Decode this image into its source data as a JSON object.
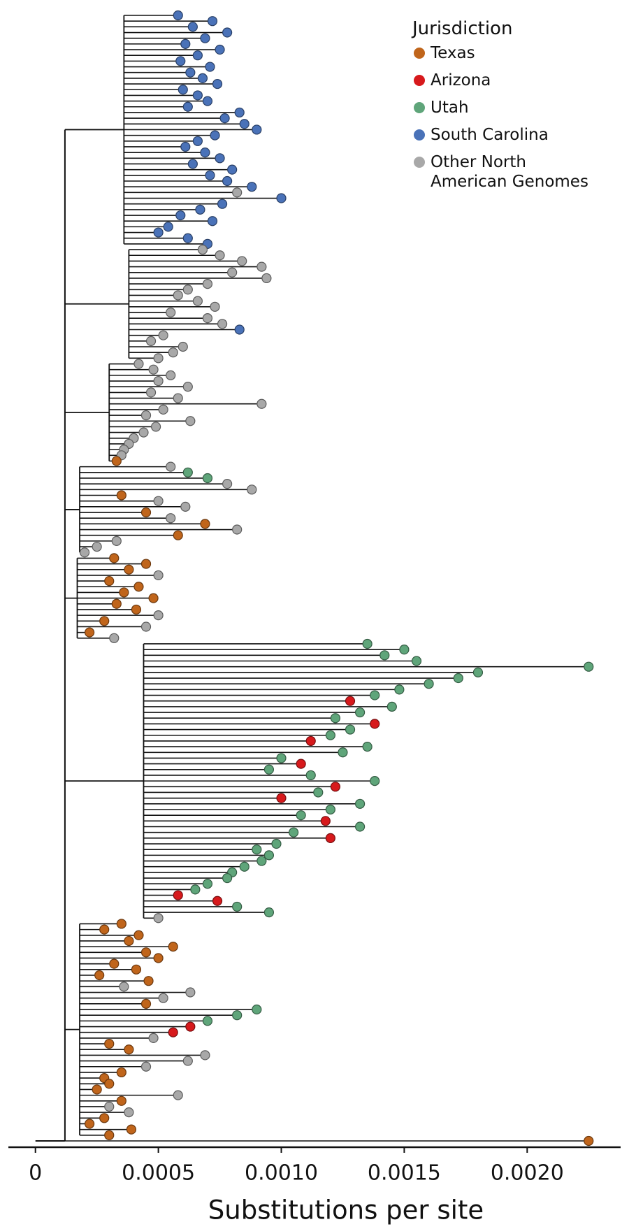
{
  "chart_data": {
    "type": "tree",
    "xlabel": "Substitutions per site",
    "xlim": [
      -0.00011,
      0.00238
    ],
    "xticks": [
      0,
      0.0005,
      {
        "value": 0.001,
        "label": "0.0010"
      },
      0.0015,
      {
        "value": 0.002,
        "label": "0.0020"
      }
    ],
    "legend_title": "Jurisdiction",
    "legend_position": "upper right",
    "series": [
      {
        "name": "Texas",
        "color": "#c0651b"
      },
      {
        "name": "Arizona",
        "color": "#d7191c"
      },
      {
        "name": "Utah",
        "color": "#5fa57a"
      },
      {
        "name": "South Carolina",
        "color": "#4a72b8"
      },
      {
        "name": "Other North American Genomes",
        "color": "#a8a8a8"
      }
    ],
    "root_x": 0.00012,
    "clades": [
      {
        "node_x": 0.00036,
        "tips": [
          [
            0.00058,
            3
          ],
          [
            0.00072,
            3
          ],
          [
            0.00064,
            3
          ],
          [
            0.00078,
            3
          ],
          [
            0.00069,
            3
          ],
          [
            0.00061,
            3
          ],
          [
            0.00075,
            3
          ],
          [
            0.00066,
            3
          ],
          [
            0.00059,
            3
          ],
          [
            0.00071,
            3
          ],
          [
            0.00063,
            3
          ],
          [
            0.00068,
            3
          ],
          [
            0.00074,
            3
          ],
          [
            0.0006,
            3
          ],
          [
            0.00066,
            3
          ],
          [
            0.0007,
            3
          ],
          [
            0.00062,
            3
          ],
          [
            0.00083,
            3
          ],
          [
            0.00077,
            3
          ],
          [
            0.00085,
            3
          ],
          [
            0.0009,
            3
          ],
          [
            0.00073,
            3
          ],
          [
            0.00066,
            3
          ],
          [
            0.00061,
            3
          ],
          [
            0.00069,
            3
          ],
          [
            0.00075,
            3
          ],
          [
            0.00064,
            3
          ],
          [
            0.0008,
            3
          ],
          [
            0.00071,
            3
          ],
          [
            0.00078,
            3
          ],
          [
            0.00088,
            3
          ],
          [
            0.00082,
            4
          ],
          [
            0.001,
            3
          ],
          [
            0.00076,
            3
          ],
          [
            0.00067,
            3
          ],
          [
            0.00059,
            3
          ],
          [
            0.00072,
            3
          ],
          [
            0.00054,
            3
          ],
          [
            0.0005,
            3
          ],
          [
            0.00062,
            3
          ],
          [
            0.0007,
            3
          ]
        ]
      },
      {
        "node_x": 0.00038,
        "tips": [
          [
            0.00068,
            4
          ],
          [
            0.00075,
            4
          ],
          [
            0.00084,
            4
          ],
          [
            0.00092,
            4
          ],
          [
            0.0008,
            4
          ],
          [
            0.00094,
            4
          ],
          [
            0.0007,
            4
          ],
          [
            0.00062,
            4
          ],
          [
            0.00058,
            4
          ],
          [
            0.00066,
            4
          ],
          [
            0.00073,
            4
          ],
          [
            0.00055,
            4
          ],
          [
            0.0007,
            4
          ],
          [
            0.00076,
            4
          ],
          [
            0.00083,
            3
          ],
          [
            0.00052,
            4
          ],
          [
            0.00047,
            4
          ],
          [
            0.0006,
            4
          ],
          [
            0.00056,
            4
          ],
          [
            0.0005,
            4
          ]
        ]
      },
      {
        "node_x": 0.0003,
        "tips": [
          [
            0.00042,
            4
          ],
          [
            0.00048,
            4
          ],
          [
            0.00055,
            4
          ],
          [
            0.0005,
            4
          ],
          [
            0.00062,
            4
          ],
          [
            0.00047,
            4
          ],
          [
            0.00058,
            4
          ],
          [
            0.00092,
            4
          ],
          [
            0.00052,
            4
          ],
          [
            0.00045,
            4
          ],
          [
            0.00063,
            4
          ],
          [
            0.00049,
            4
          ],
          [
            0.00044,
            4
          ],
          [
            0.0004,
            4
          ],
          [
            0.00038,
            4
          ],
          [
            0.00036,
            4
          ],
          [
            0.00035,
            4
          ],
          [
            0.00033,
            0
          ]
        ]
      },
      {
        "node_x": 0.00018,
        "tips": [
          [
            0.00055,
            4
          ],
          [
            0.00062,
            2
          ],
          [
            0.0007,
            2
          ],
          [
            0.00078,
            4
          ],
          [
            0.00088,
            4
          ],
          [
            0.00035,
            0
          ],
          [
            0.0005,
            4
          ],
          [
            0.00061,
            4
          ],
          [
            0.00045,
            0
          ],
          [
            0.00055,
            4
          ],
          [
            0.00069,
            0
          ],
          [
            0.00082,
            4
          ],
          [
            0.00058,
            0
          ],
          [
            0.00033,
            4
          ],
          [
            0.00025,
            4
          ],
          [
            0.0002,
            4
          ]
        ]
      },
      {
        "node_x": 0.00017,
        "tips": [
          [
            0.00032,
            0
          ],
          [
            0.00045,
            0
          ],
          [
            0.00038,
            0
          ],
          [
            0.0005,
            4
          ],
          [
            0.0003,
            0
          ],
          [
            0.00042,
            0
          ],
          [
            0.00036,
            0
          ],
          [
            0.00048,
            0
          ],
          [
            0.00033,
            0
          ],
          [
            0.00041,
            0
          ],
          [
            0.0005,
            4
          ],
          [
            0.00028,
            0
          ],
          [
            0.00045,
            4
          ],
          [
            0.00022,
            0
          ],
          [
            0.00032,
            4
          ]
        ]
      },
      {
        "node_x": 0.00044,
        "tips": [
          [
            0.00135,
            2
          ],
          [
            0.0015,
            2
          ],
          [
            0.00142,
            2
          ],
          [
            0.00155,
            2
          ],
          [
            0.00225,
            2
          ],
          [
            0.0018,
            2
          ],
          [
            0.00172,
            2
          ],
          [
            0.0016,
            2
          ],
          [
            0.00148,
            2
          ],
          [
            0.00138,
            2
          ],
          [
            0.00128,
            1
          ],
          [
            0.00145,
            2
          ],
          [
            0.00132,
            2
          ],
          [
            0.00122,
            2
          ],
          [
            0.00138,
            1
          ],
          [
            0.00128,
            2
          ],
          [
            0.0012,
            2
          ],
          [
            0.00112,
            1
          ],
          [
            0.00135,
            2
          ],
          [
            0.00125,
            2
          ],
          [
            0.001,
            2
          ],
          [
            0.00108,
            1
          ],
          [
            0.00095,
            2
          ],
          [
            0.00112,
            2
          ],
          [
            0.00138,
            2
          ],
          [
            0.00122,
            1
          ],
          [
            0.00115,
            2
          ],
          [
            0.001,
            1
          ],
          [
            0.00132,
            2
          ],
          [
            0.0012,
            2
          ],
          [
            0.00108,
            2
          ],
          [
            0.00118,
            1
          ],
          [
            0.00132,
            2
          ],
          [
            0.00105,
            2
          ],
          [
            0.0012,
            1
          ],
          [
            0.00098,
            2
          ],
          [
            0.0009,
            2
          ],
          [
            0.00095,
            2
          ],
          [
            0.00092,
            2
          ],
          [
            0.00085,
            2
          ],
          [
            0.0008,
            2
          ],
          [
            0.00078,
            2
          ],
          [
            0.0007,
            2
          ],
          [
            0.00065,
            2
          ],
          [
            0.00058,
            1
          ],
          [
            0.00074,
            1
          ],
          [
            0.00082,
            2
          ],
          [
            0.00095,
            2
          ],
          [
            0.0005,
            4
          ]
        ]
      },
      {
        "node_x": 0.00018,
        "tips": [
          [
            0.00035,
            0
          ],
          [
            0.00028,
            0
          ],
          [
            0.00042,
            0
          ],
          [
            0.00038,
            0
          ],
          [
            0.00056,
            0
          ],
          [
            0.00045,
            0
          ],
          [
            0.0005,
            0
          ],
          [
            0.00032,
            0
          ],
          [
            0.00041,
            0
          ],
          [
            0.00026,
            0
          ],
          [
            0.00046,
            0
          ],
          [
            0.00036,
            4
          ],
          [
            0.00063,
            4
          ],
          [
            0.00052,
            4
          ],
          [
            0.00045,
            0
          ],
          [
            0.0009,
            2
          ],
          [
            0.00082,
            2
          ],
          [
            0.0007,
            2
          ],
          [
            0.00063,
            1
          ],
          [
            0.00056,
            1
          ],
          [
            0.00048,
            4
          ],
          [
            0.0003,
            0
          ],
          [
            0.00038,
            0
          ],
          [
            0.00069,
            4
          ],
          [
            0.00062,
            4
          ],
          [
            0.00045,
            4
          ],
          [
            0.00035,
            0
          ],
          [
            0.00028,
            0
          ],
          [
            0.0003,
            0
          ],
          [
            0.00025,
            0
          ],
          [
            0.00058,
            4
          ],
          [
            0.00035,
            0
          ],
          [
            0.0003,
            4
          ],
          [
            0.00038,
            4
          ],
          [
            0.00028,
            0
          ],
          [
            0.00022,
            0
          ],
          [
            0.00039,
            0
          ],
          [
            0.0003,
            0
          ]
        ]
      },
      {
        "node_x": 0.00012,
        "tips": [
          [
            0.00225,
            0
          ]
        ]
      }
    ]
  }
}
